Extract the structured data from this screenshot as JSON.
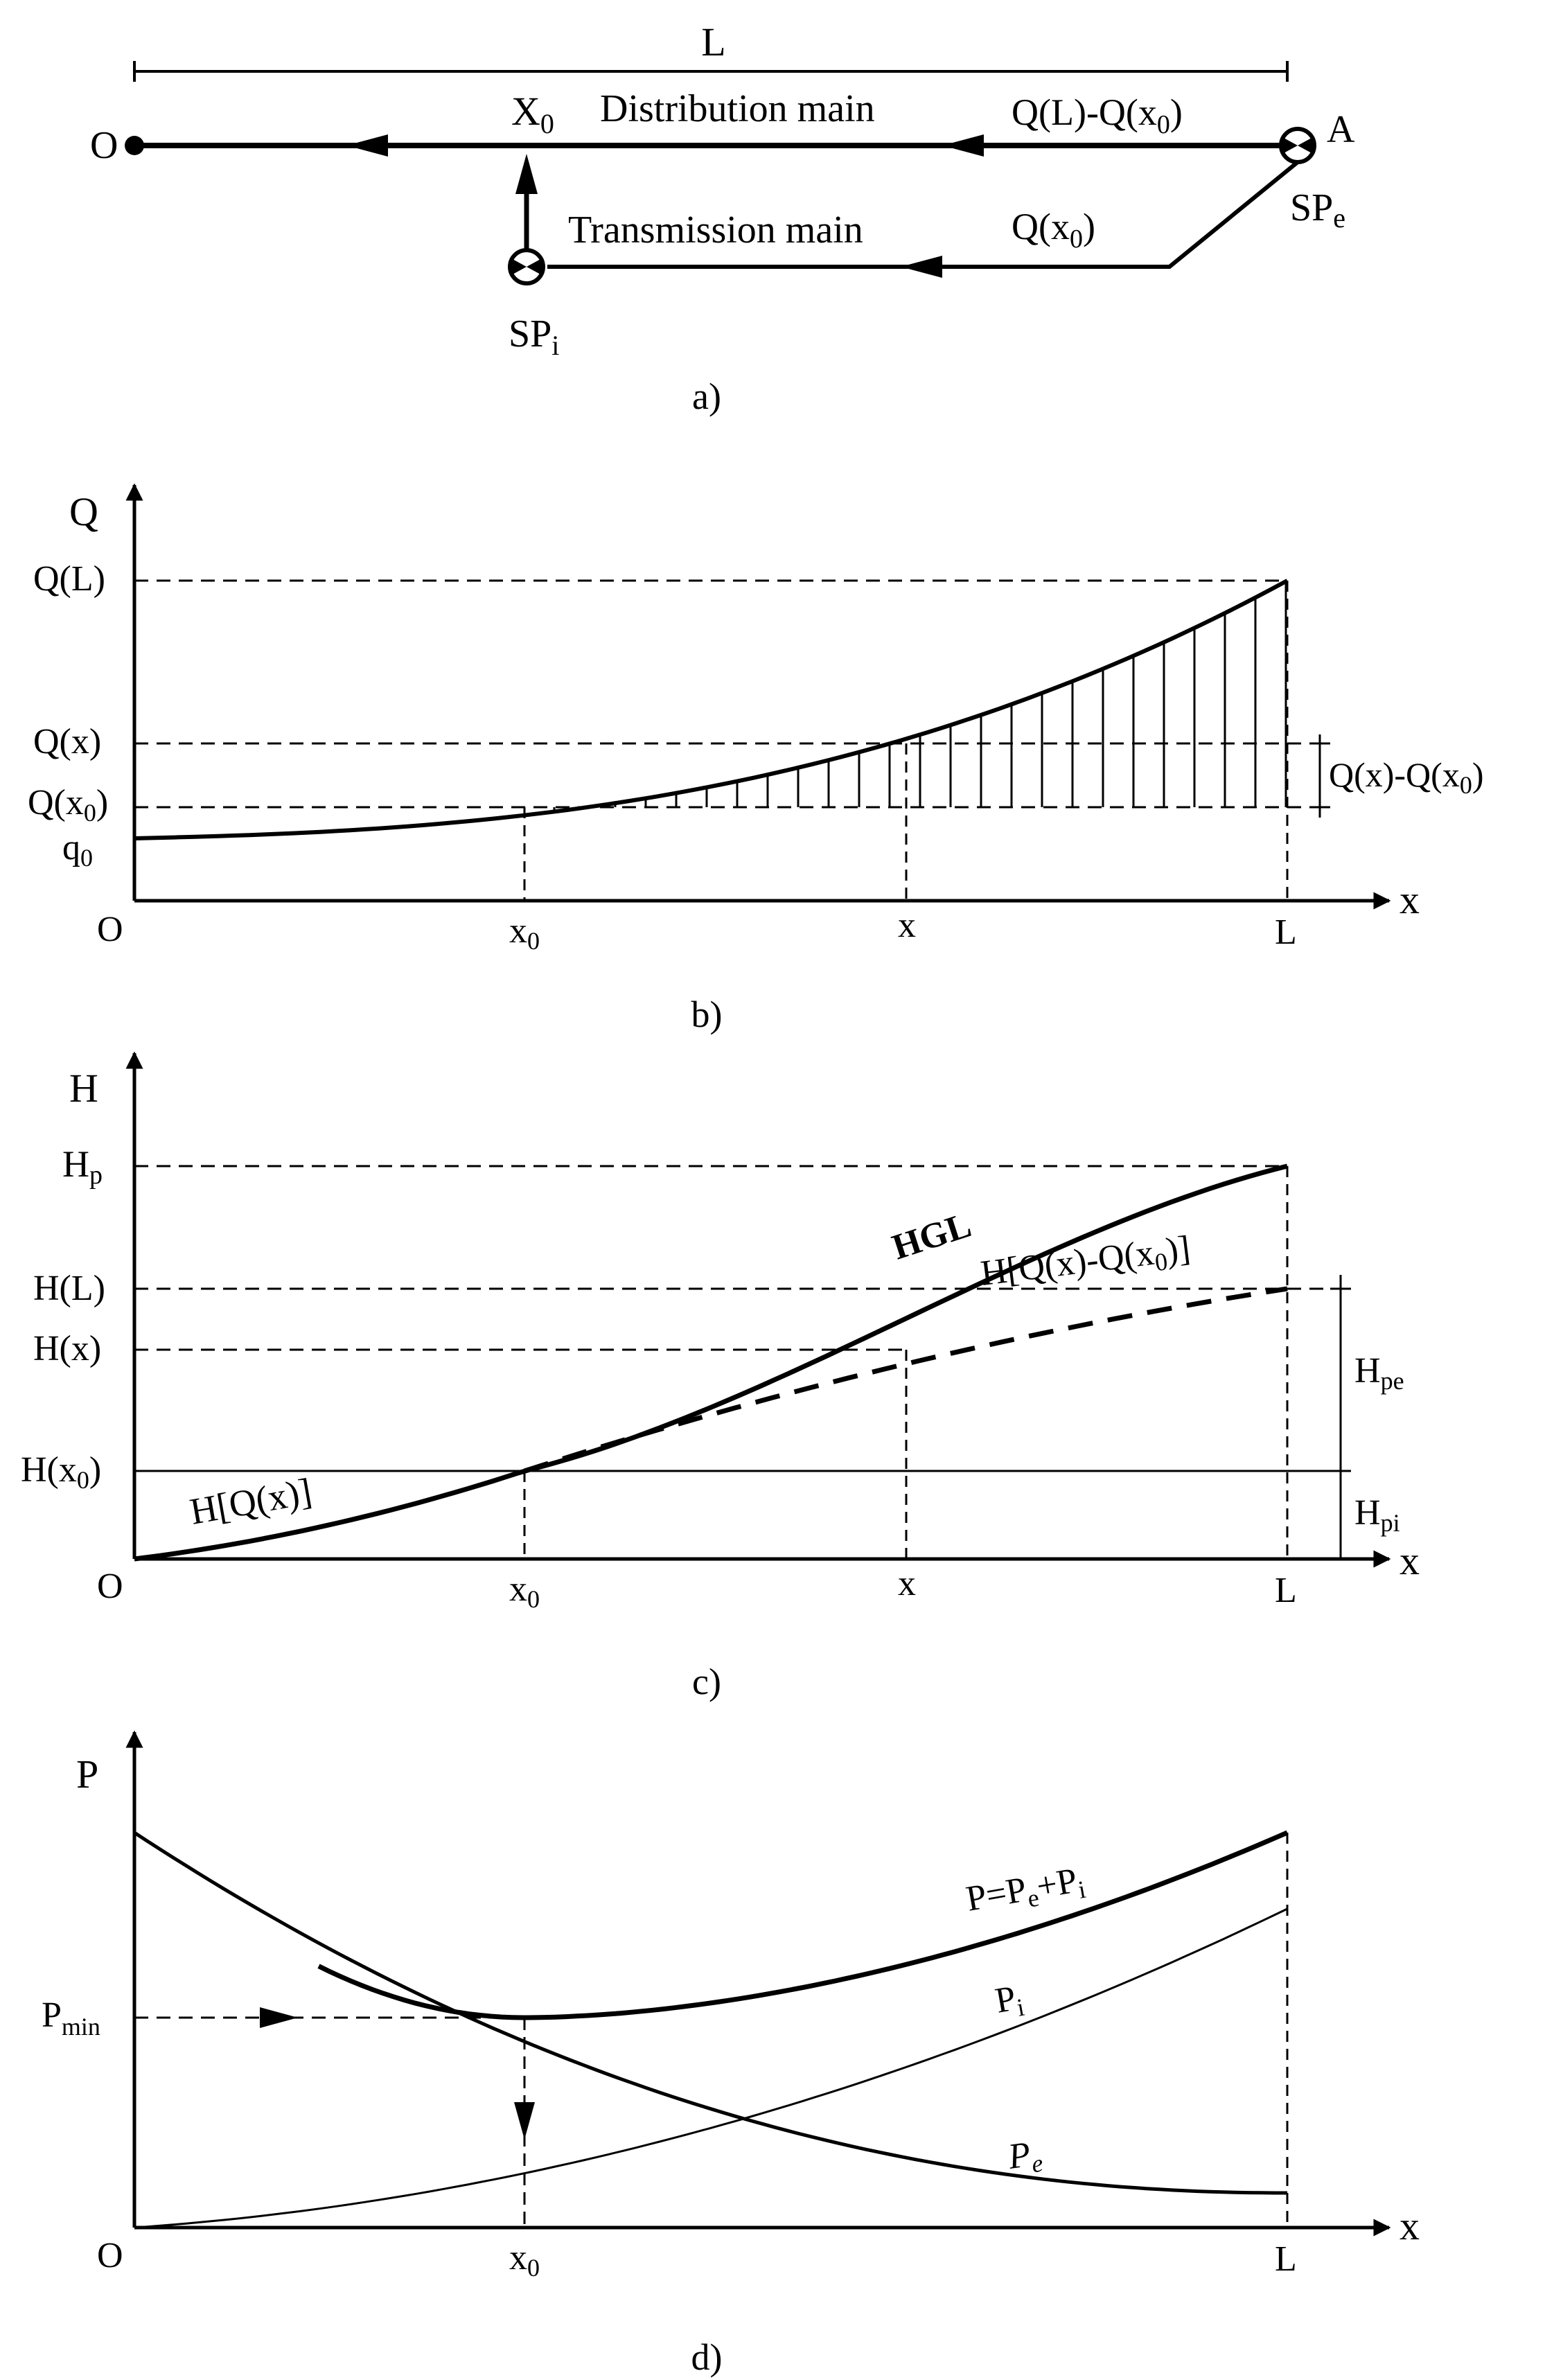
{
  "panel_a": {
    "caption": "a)",
    "length_label": "L",
    "origin_label": "O",
    "end_label": "A",
    "junction_label": "X",
    "junction_sub": "0",
    "distribution_label": "Distribution main",
    "transmission_label": "Transmission main",
    "flow_top_label": "Q(L)-Q(x",
    "flow_top_sub": "0",
    "flow_top_close": ")",
    "flow_bottom_label": "Q(x",
    "flow_bottom_sub": "0",
    "flow_bottom_close": ")",
    "pump_e_label": "SP",
    "pump_e_sub": "e",
    "pump_i_label": "SP",
    "pump_i_sub": "i"
  },
  "panel_b": {
    "caption": "b)",
    "y_axis": "Q",
    "x_axis": "x",
    "origin": "O",
    "tick_x0": "x",
    "tick_x0_sub": "0",
    "tick_x": "x",
    "tick_L": "L",
    "label_QL": "Q(L)",
    "label_Qx": "Q(x)",
    "label_Qx0": "Q(x",
    "label_Qx0_sub": "0",
    "label_Qx0_close": ")",
    "label_q0": "q",
    "label_q0_sub": "0",
    "diff_label": "Q(x)-Q(x",
    "diff_sub": "0",
    "diff_close": ")"
  },
  "panel_c": {
    "caption": "c)",
    "y_axis": "H",
    "x_axis": "x",
    "origin": "O",
    "tick_x0": "x",
    "tick_x0_sub": "0",
    "tick_x": "x",
    "tick_L": "L",
    "label_Hp": "H",
    "label_Hp_sub": "p",
    "label_HL": "H(L)",
    "label_Hx": "H(x)",
    "label_Hx0": "H(x",
    "label_Hx0_sub": "0",
    "label_Hx0_close": ")",
    "curve_HGL": "HGL",
    "curve_dashed": "H[Q(x)-Q(x",
    "curve_dashed_sub": "0",
    "curve_dashed_close": ")]",
    "curve_HQ": "H[Q(x)]",
    "label_Hpe": "H",
    "label_Hpe_sub": "pe",
    "label_Hpi": "H",
    "label_Hpi_sub": "pi"
  },
  "panel_d": {
    "caption": "d)",
    "y_axis": "P",
    "x_axis": "x",
    "origin": "O",
    "tick_x0": "x",
    "tick_x0_sub": "0",
    "tick_L": "L",
    "label_Pmin": "P",
    "label_Pmin_sub": "min",
    "curve_total": "P=P",
    "curve_total_sub1": "e",
    "curve_total_mid": "+P",
    "curve_total_sub2": "i",
    "curve_Pi": "P",
    "curve_Pi_sub": "i",
    "curve_Pe": "P",
    "curve_Pe_sub": "e"
  }
}
